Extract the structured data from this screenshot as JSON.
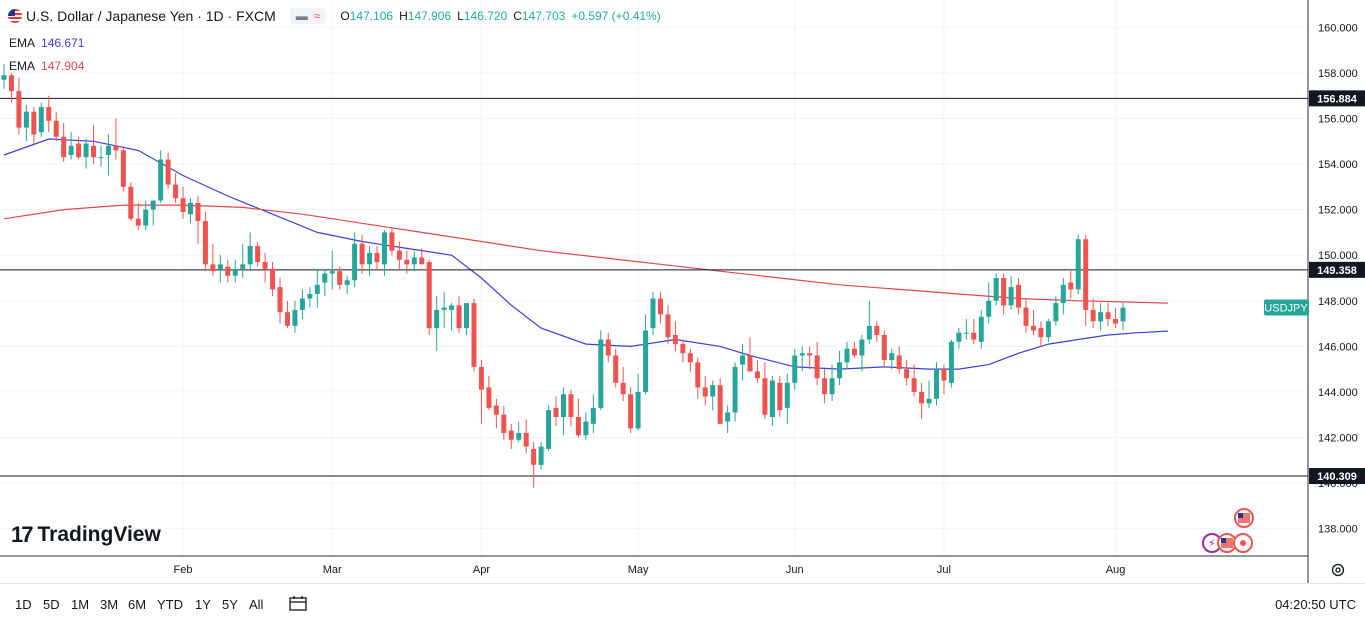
{
  "header": {
    "symbol_title": "U.S. Dollar / Japanese Yen · 1D · FXCM",
    "open_label": "O",
    "open": "147.106",
    "high_label": "H",
    "high": "147.906",
    "low_label": "L",
    "low": "146.720",
    "close_label": "C",
    "close": "147.703",
    "change": "+0.597 (+0.41%)"
  },
  "indicators": [
    {
      "label": "EMA",
      "value": "146.671",
      "color": "#3b3fd8"
    },
    {
      "label": "EMA",
      "value": "147.904",
      "color": "#e0474c"
    }
  ],
  "branding": {
    "name": "TradingView"
  },
  "timeframes": [
    "1D",
    "5D",
    "1M",
    "3M",
    "6M",
    "YTD",
    "1Y",
    "5Y",
    "All"
  ],
  "clock": "04:20:50 UTC",
  "colors": {
    "up": "#26a69a",
    "down": "#ef5350",
    "ema_fast": "#3b3fd8",
    "ema_slow": "#e0474c",
    "level": "#131722"
  },
  "chart_data": {
    "type": "candlestick",
    "title": "U.S. Dollar / Japanese Yen · 1D · FXCM",
    "symbol_tag": "USDJPY",
    "last_price": 147.703,
    "ylim": [
      136.8,
      161.2
    ],
    "y_ticks": [
      "138.000",
      "140.000",
      "142.000",
      "144.000",
      "146.000",
      "148.000",
      "150.000",
      "152.000",
      "154.000",
      "156.000",
      "158.000",
      "160.000"
    ],
    "x_labels": [
      {
        "label": "Feb",
        "index": 24
      },
      {
        "label": "Mar",
        "index": 44
      },
      {
        "label": "Apr",
        "index": 64
      },
      {
        "label": "May",
        "index": 85
      },
      {
        "label": "Jun",
        "index": 106
      },
      {
        "label": "Jul",
        "index": 126
      },
      {
        "label": "Aug",
        "index": 149
      }
    ],
    "horizontal_levels": [
      156.884,
      149.358,
      140.309
    ],
    "level_labels": [
      "156.884",
      "149.358",
      "140.309"
    ],
    "candles": [
      [
        157.7,
        158.4,
        157.3,
        157.9
      ],
      [
        157.9,
        158.0,
        156.7,
        157.2
      ],
      [
        157.2,
        157.8,
        155.3,
        155.6
      ],
      [
        155.6,
        156.6,
        155.0,
        156.3
      ],
      [
        156.3,
        156.5,
        154.9,
        155.3
      ],
      [
        155.4,
        156.7,
        155.2,
        156.5
      ],
      [
        156.5,
        157.0,
        155.4,
        155.9
      ],
      [
        155.9,
        156.3,
        155.0,
        155.2
      ],
      [
        155.2,
        155.8,
        154.1,
        154.3
      ],
      [
        154.4,
        155.4,
        154.2,
        154.8
      ],
      [
        154.9,
        155.2,
        154.2,
        154.3
      ],
      [
        154.3,
        155.1,
        153.8,
        154.9
      ],
      [
        154.8,
        155.7,
        154.0,
        154.3
      ],
      [
        154.3,
        154.8,
        153.9,
        154.3
      ],
      [
        154.4,
        155.3,
        153.5,
        154.8
      ],
      [
        154.8,
        156.0,
        154.2,
        154.6
      ],
      [
        154.6,
        154.8,
        152.8,
        153.0
      ],
      [
        153.0,
        153.2,
        151.5,
        151.6
      ],
      [
        151.6,
        152.3,
        151.1,
        151.3
      ],
      [
        151.3,
        152.4,
        151.1,
        152.0
      ],
      [
        152.0,
        152.3,
        151.3,
        152.4
      ],
      [
        152.4,
        154.6,
        152.3,
        154.2
      ],
      [
        154.2,
        154.5,
        152.9,
        153.1
      ],
      [
        153.1,
        153.6,
        152.3,
        152.5
      ],
      [
        152.5,
        153.0,
        151.6,
        151.9
      ],
      [
        151.8,
        152.5,
        151.4,
        152.3
      ],
      [
        152.3,
        152.6,
        150.5,
        151.5
      ],
      [
        151.5,
        151.9,
        149.3,
        149.6
      ],
      [
        149.6,
        150.5,
        149.1,
        149.3
      ],
      [
        149.4,
        150.0,
        148.8,
        149.6
      ],
      [
        149.5,
        149.8,
        148.8,
        149.1
      ],
      [
        149.1,
        149.8,
        148.8,
        149.4
      ],
      [
        149.4,
        150.5,
        149.0,
        149.6
      ],
      [
        149.6,
        151.0,
        149.3,
        150.4
      ],
      [
        150.4,
        150.6,
        149.5,
        149.7
      ],
      [
        149.7,
        150.1,
        148.8,
        149.4
      ],
      [
        149.4,
        149.7,
        148.2,
        148.5
      ],
      [
        148.6,
        149.0,
        147.0,
        147.5
      ],
      [
        147.5,
        148.0,
        146.8,
        146.9
      ],
      [
        146.9,
        148.0,
        146.6,
        147.6
      ],
      [
        147.6,
        148.5,
        147.2,
        148.1
      ],
      [
        148.1,
        148.6,
        147.7,
        148.3
      ],
      [
        148.3,
        149.4,
        147.7,
        148.7
      ],
      [
        148.8,
        149.4,
        148.2,
        149.2
      ],
      [
        149.2,
        150.2,
        148.5,
        149.3
      ],
      [
        149.3,
        149.5,
        148.5,
        148.7
      ],
      [
        148.7,
        149.1,
        148.3,
        148.9
      ],
      [
        148.9,
        151.0,
        148.6,
        150.5
      ],
      [
        150.5,
        150.9,
        149.2,
        149.6
      ],
      [
        149.6,
        150.4,
        149.1,
        150.1
      ],
      [
        150.1,
        150.4,
        149.4,
        149.7
      ],
      [
        149.6,
        151.1,
        149.1,
        151.0
      ],
      [
        151.0,
        151.2,
        150.0,
        150.2
      ],
      [
        150.2,
        150.6,
        149.4,
        149.8
      ],
      [
        149.8,
        150.2,
        149.2,
        149.6
      ],
      [
        149.6,
        150.2,
        149.3,
        149.9
      ],
      [
        149.9,
        150.3,
        149.6,
        149.6
      ],
      [
        149.7,
        149.8,
        146.5,
        146.8
      ],
      [
        146.8,
        148.2,
        145.8,
        147.6
      ],
      [
        147.6,
        148.4,
        146.8,
        147.7
      ],
      [
        147.6,
        147.9,
        146.7,
        147.8
      ],
      [
        147.8,
        148.2,
        146.6,
        146.8
      ],
      [
        146.8,
        147.8,
        146.5,
        147.9
      ],
      [
        147.9,
        148.1,
        144.9,
        145.1
      ],
      [
        145.1,
        145.4,
        142.6,
        144.1
      ],
      [
        144.2,
        144.7,
        143.2,
        143.3
      ],
      [
        143.4,
        143.7,
        142.4,
        143.0
      ],
      [
        143.0,
        143.4,
        141.9,
        142.2
      ],
      [
        142.3,
        142.6,
        141.5,
        141.9
      ],
      [
        141.9,
        142.7,
        141.8,
        142.2
      ],
      [
        142.2,
        142.8,
        141.3,
        141.6
      ],
      [
        141.5,
        141.8,
        139.8,
        140.8
      ],
      [
        140.8,
        141.8,
        140.6,
        141.6
      ],
      [
        141.5,
        143.4,
        141.4,
        143.2
      ],
      [
        143.3,
        143.8,
        142.5,
        142.9
      ],
      [
        142.9,
        144.2,
        142.1,
        143.9
      ],
      [
        143.9,
        144.1,
        142.5,
        142.9
      ],
      [
        142.9,
        143.7,
        142.0,
        142.1
      ],
      [
        142.1,
        143.1,
        141.9,
        142.7
      ],
      [
        142.6,
        143.9,
        142.2,
        143.3
      ],
      [
        143.3,
        146.7,
        143.2,
        146.3
      ],
      [
        146.3,
        146.6,
        145.3,
        145.6
      ],
      [
        145.6,
        145.9,
        144.2,
        144.4
      ],
      [
        144.4,
        145.1,
        143.6,
        143.9
      ],
      [
        143.9,
        144.2,
        142.2,
        142.4
      ],
      [
        142.4,
        144.8,
        142.3,
        144.0
      ],
      [
        144.0,
        147.4,
        143.9,
        146.7
      ],
      [
        146.8,
        148.4,
        146.5,
        148.1
      ],
      [
        148.1,
        148.4,
        147.0,
        147.4
      ],
      [
        147.4,
        147.8,
        146.1,
        146.4
      ],
      [
        146.5,
        147.1,
        145.8,
        146.1
      ],
      [
        146.1,
        146.3,
        145.3,
        145.7
      ],
      [
        145.7,
        145.9,
        144.9,
        145.3
      ],
      [
        145.3,
        145.5,
        143.7,
        144.2
      ],
      [
        144.2,
        144.7,
        143.4,
        143.8
      ],
      [
        143.8,
        144.5,
        143.2,
        144.3
      ],
      [
        144.3,
        144.6,
        142.6,
        142.6
      ],
      [
        142.7,
        143.4,
        142.2,
        143.1
      ],
      [
        143.1,
        145.3,
        142.7,
        145.1
      ],
      [
        145.2,
        146.1,
        144.5,
        145.6
      ],
      [
        145.6,
        146.4,
        144.9,
        144.9
      ],
      [
        144.9,
        145.4,
        144.4,
        144.6
      ],
      [
        144.6,
        145.3,
        142.8,
        143.0
      ],
      [
        142.9,
        144.7,
        142.5,
        144.5
      ],
      [
        144.4,
        144.7,
        142.9,
        143.2
      ],
      [
        143.3,
        144.8,
        142.6,
        144.4
      ],
      [
        144.4,
        145.9,
        144.1,
        145.6
      ],
      [
        145.6,
        146.0,
        144.9,
        145.7
      ],
      [
        145.7,
        146.0,
        145.0,
        145.6
      ],
      [
        145.6,
        146.2,
        144.3,
        144.6
      ],
      [
        144.6,
        145.0,
        143.5,
        143.9
      ],
      [
        143.9,
        145.2,
        143.6,
        144.6
      ],
      [
        144.6,
        145.8,
        144.3,
        145.3
      ],
      [
        145.3,
        146.2,
        145.0,
        145.9
      ],
      [
        145.9,
        146.2,
        145.5,
        145.6
      ],
      [
        145.6,
        146.5,
        144.9,
        146.3
      ],
      [
        146.3,
        148.0,
        146.1,
        146.9
      ],
      [
        146.9,
        147.1,
        146.2,
        146.5
      ],
      [
        146.5,
        146.7,
        145.1,
        145.4
      ],
      [
        145.4,
        145.9,
        145.0,
        145.7
      ],
      [
        145.6,
        146.0,
        144.8,
        145.0
      ],
      [
        145.0,
        145.4,
        144.3,
        144.6
      ],
      [
        144.6,
        145.2,
        143.8,
        144.0
      ],
      [
        144.0,
        144.4,
        142.8,
        143.5
      ],
      [
        143.5,
        144.5,
        143.3,
        143.7
      ],
      [
        143.7,
        145.3,
        143.4,
        145.0
      ],
      [
        145.0,
        145.2,
        143.9,
        144.5
      ],
      [
        144.4,
        146.3,
        144.2,
        146.2
      ],
      [
        146.2,
        146.8,
        145.9,
        146.6
      ],
      [
        146.6,
        147.2,
        146.3,
        146.6
      ],
      [
        146.6,
        147.2,
        146.1,
        146.3
      ],
      [
        146.2,
        147.6,
        145.9,
        147.3
      ],
      [
        147.3,
        148.8,
        147.0,
        148.0
      ],
      [
        148.0,
        149.2,
        147.8,
        149.0
      ],
      [
        149.0,
        149.2,
        147.4,
        147.8
      ],
      [
        147.8,
        149.1,
        147.6,
        148.6
      ],
      [
        148.7,
        149.0,
        147.4,
        147.7
      ],
      [
        147.7,
        148.1,
        146.6,
        146.9
      ],
      [
        146.9,
        147.6,
        146.5,
        146.7
      ],
      [
        146.8,
        147.1,
        146.0,
        146.4
      ],
      [
        146.4,
        147.2,
        146.2,
        147.1
      ],
      [
        147.1,
        148.2,
        146.9,
        147.9
      ],
      [
        147.9,
        149.0,
        147.4,
        148.7
      ],
      [
        148.8,
        149.3,
        148.1,
        148.5
      ],
      [
        148.5,
        150.9,
        148.3,
        150.7
      ],
      [
        150.7,
        150.9,
        146.9,
        147.6
      ],
      [
        147.6,
        148.1,
        146.8,
        147.1
      ],
      [
        147.1,
        147.9,
        146.7,
        147.5
      ],
      [
        147.5,
        147.9,
        146.9,
        147.2
      ],
      [
        147.2,
        147.7,
        146.8,
        147.0
      ],
      [
        147.1,
        147.9,
        146.7,
        147.7
      ]
    ],
    "series": [
      {
        "name": "EMA 146.671",
        "color": "#3b3fd8",
        "points": [
          [
            0,
            154.4
          ],
          [
            6,
            155.1
          ],
          [
            12,
            155.0
          ],
          [
            18,
            154.6
          ],
          [
            24,
            153.5
          ],
          [
            30,
            152.6
          ],
          [
            36,
            151.8
          ],
          [
            42,
            151.0
          ],
          [
            48,
            150.6
          ],
          [
            54,
            150.3
          ],
          [
            60,
            150.0
          ],
          [
            64,
            149.0
          ],
          [
            68,
            147.8
          ],
          [
            72,
            146.8
          ],
          [
            78,
            146.1
          ],
          [
            84,
            146.0
          ],
          [
            90,
            146.3
          ],
          [
            96,
            146.0
          ],
          [
            100,
            145.6
          ],
          [
            106,
            145.1
          ],
          [
            112,
            145.0
          ],
          [
            118,
            145.1
          ],
          [
            124,
            145.0
          ],
          [
            128,
            145.0
          ],
          [
            132,
            145.2
          ],
          [
            136,
            145.7
          ],
          [
            140,
            146.1
          ],
          [
            144,
            146.3
          ],
          [
            148,
            146.5
          ],
          [
            152,
            146.6
          ],
          [
            156,
            146.67
          ]
        ]
      },
      {
        "name": "EMA 147.904",
        "color": "#e0474c",
        "points": [
          [
            0,
            151.6
          ],
          [
            8,
            152.0
          ],
          [
            16,
            152.2
          ],
          [
            24,
            152.2
          ],
          [
            32,
            152.1
          ],
          [
            40,
            151.8
          ],
          [
            48,
            151.4
          ],
          [
            56,
            151.0
          ],
          [
            64,
            150.6
          ],
          [
            72,
            150.2
          ],
          [
            80,
            149.9
          ],
          [
            88,
            149.6
          ],
          [
            96,
            149.3
          ],
          [
            104,
            149.0
          ],
          [
            112,
            148.7
          ],
          [
            120,
            148.5
          ],
          [
            128,
            148.3
          ],
          [
            136,
            148.1
          ],
          [
            144,
            148.0
          ],
          [
            150,
            147.95
          ],
          [
            156,
            147.9
          ]
        ]
      }
    ]
  }
}
